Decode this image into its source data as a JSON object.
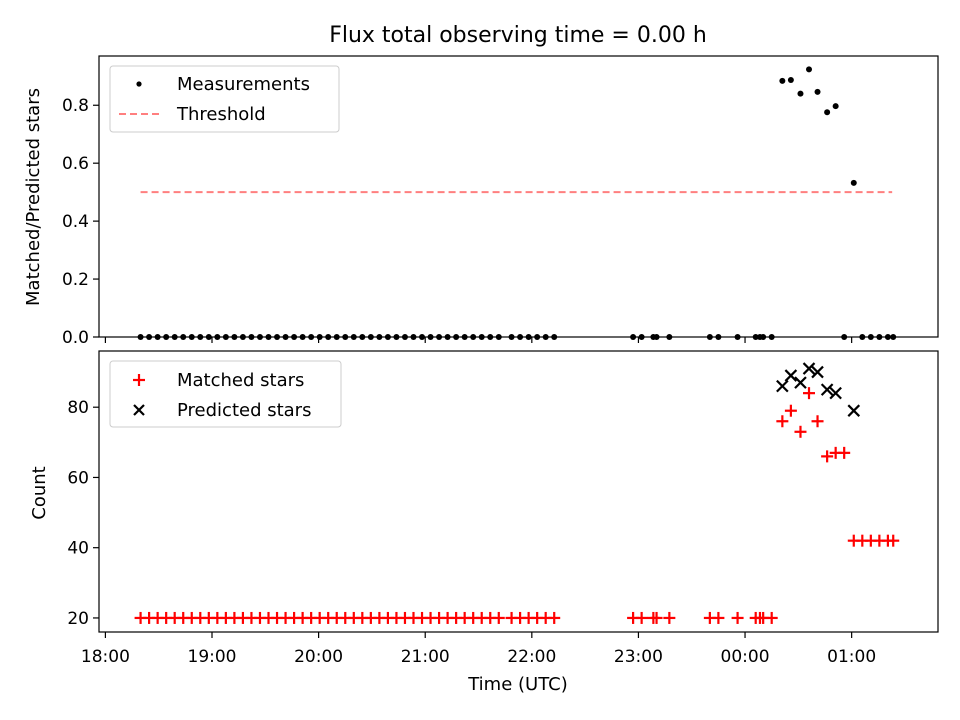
{
  "chart_data": [
    {
      "type": "scatter",
      "title": "Flux total observing time = 0.00 h",
      "ylabel": "Matched/Predicted stars",
      "xlim_hours": [
        17.94,
        25.81
      ],
      "ylim": [
        0,
        0.97
      ],
      "yticks": [
        0.0,
        0.2,
        0.4,
        0.6,
        0.8
      ],
      "ytick_labels": [
        "0.0",
        "0.2",
        "0.4",
        "0.6",
        "0.8"
      ],
      "legend_position": "top-left",
      "legend": [
        "Measurements",
        "Threshold"
      ],
      "threshold": {
        "value": 0.5,
        "x_start": 18.33,
        "x_end": 25.38,
        "color": "#ff7f7f"
      },
      "measurements": {
        "color": "#000000",
        "x": [
          18.33,
          18.41,
          18.49,
          18.57,
          18.65,
          18.73,
          18.81,
          18.89,
          18.97,
          19.05,
          19.13,
          19.21,
          19.29,
          19.37,
          19.45,
          19.53,
          19.61,
          19.69,
          19.77,
          19.85,
          19.93,
          20.01,
          20.09,
          20.17,
          20.25,
          20.33,
          20.41,
          20.49,
          20.57,
          20.65,
          20.73,
          20.81,
          20.89,
          20.97,
          21.05,
          21.13,
          21.21,
          21.29,
          21.37,
          21.45,
          21.53,
          21.61,
          21.69,
          21.81,
          21.89,
          21.97,
          22.05,
          22.13,
          22.21,
          22.95,
          23.03,
          23.14,
          23.17,
          23.29,
          23.67,
          23.75,
          23.93,
          24.1,
          24.14,
          24.17,
          24.25,
          24.35,
          24.43,
          24.52,
          24.6,
          24.68,
          24.77,
          24.85,
          24.93,
          25.02,
          25.1,
          25.18,
          25.26,
          25.34,
          25.39
        ],
        "y": [
          0,
          0,
          0,
          0,
          0,
          0,
          0,
          0,
          0,
          0,
          0,
          0,
          0,
          0,
          0,
          0,
          0,
          0,
          0,
          0,
          0,
          0,
          0,
          0,
          0,
          0,
          0,
          0,
          0,
          0,
          0,
          0,
          0,
          0,
          0,
          0,
          0,
          0,
          0,
          0,
          0,
          0,
          0,
          0,
          0,
          0,
          0,
          0,
          0,
          0,
          0,
          0,
          0,
          0,
          0,
          0,
          0,
          0,
          0,
          0,
          0,
          0.884,
          0.887,
          0.84,
          0.924,
          0.846,
          0.776,
          0.797,
          0,
          0.532,
          0,
          0,
          0,
          0,
          0
        ]
      }
    },
    {
      "type": "scatter",
      "xlabel": "Time (UTC)",
      "ylabel": "Count",
      "xlim_hours": [
        17.94,
        25.81
      ],
      "ylim": [
        16,
        96
      ],
      "yticks": [
        20,
        40,
        60,
        80
      ],
      "ytick_labels": [
        "20",
        "40",
        "60",
        "80"
      ],
      "xticks_hours": [
        18,
        19,
        20,
        21,
        22,
        23,
        24,
        25
      ],
      "xtick_labels": [
        "18:00",
        "19:00",
        "20:00",
        "21:00",
        "22:00",
        "23:00",
        "00:00",
        "01:00"
      ],
      "legend_position": "top-left",
      "legend": [
        "Matched stars",
        "Predicted stars"
      ],
      "series": [
        {
          "name": "Matched stars",
          "marker": "plus",
          "color": "#ff0000",
          "x": [
            18.33,
            18.41,
            18.49,
            18.57,
            18.65,
            18.73,
            18.81,
            18.89,
            18.97,
            19.05,
            19.13,
            19.21,
            19.29,
            19.37,
            19.45,
            19.53,
            19.61,
            19.69,
            19.77,
            19.85,
            19.93,
            20.01,
            20.09,
            20.17,
            20.25,
            20.33,
            20.41,
            20.49,
            20.57,
            20.65,
            20.73,
            20.81,
            20.89,
            20.97,
            21.05,
            21.13,
            21.21,
            21.29,
            21.37,
            21.45,
            21.53,
            21.61,
            21.69,
            21.81,
            21.89,
            21.97,
            22.05,
            22.13,
            22.21,
            22.95,
            23.03,
            23.14,
            23.17,
            23.29,
            23.67,
            23.75,
            23.93,
            24.1,
            24.14,
            24.17,
            24.25,
            24.35,
            24.43,
            24.52,
            24.6,
            24.68,
            24.77,
            24.85,
            24.93,
            25.02,
            25.1,
            25.18,
            25.26,
            25.34,
            25.39
          ],
          "y": [
            20,
            20,
            20,
            20,
            20,
            20,
            20,
            20,
            20,
            20,
            20,
            20,
            20,
            20,
            20,
            20,
            20,
            20,
            20,
            20,
            20,
            20,
            20,
            20,
            20,
            20,
            20,
            20,
            20,
            20,
            20,
            20,
            20,
            20,
            20,
            20,
            20,
            20,
            20,
            20,
            20,
            20,
            20,
            20,
            20,
            20,
            20,
            20,
            20,
            20,
            20,
            20,
            20,
            20,
            20,
            20,
            20,
            20,
            20,
            20,
            20,
            76,
            79,
            73,
            84,
            76,
            66,
            67,
            67,
            42,
            42,
            42,
            42,
            42,
            42
          ]
        },
        {
          "name": "Predicted stars",
          "marker": "x",
          "color": "#000000",
          "x": [
            24.35,
            24.43,
            24.52,
            24.6,
            24.68,
            24.77,
            24.85,
            25.02
          ],
          "y": [
            86,
            89,
            87,
            91,
            90,
            85,
            84,
            79
          ]
        }
      ]
    }
  ]
}
